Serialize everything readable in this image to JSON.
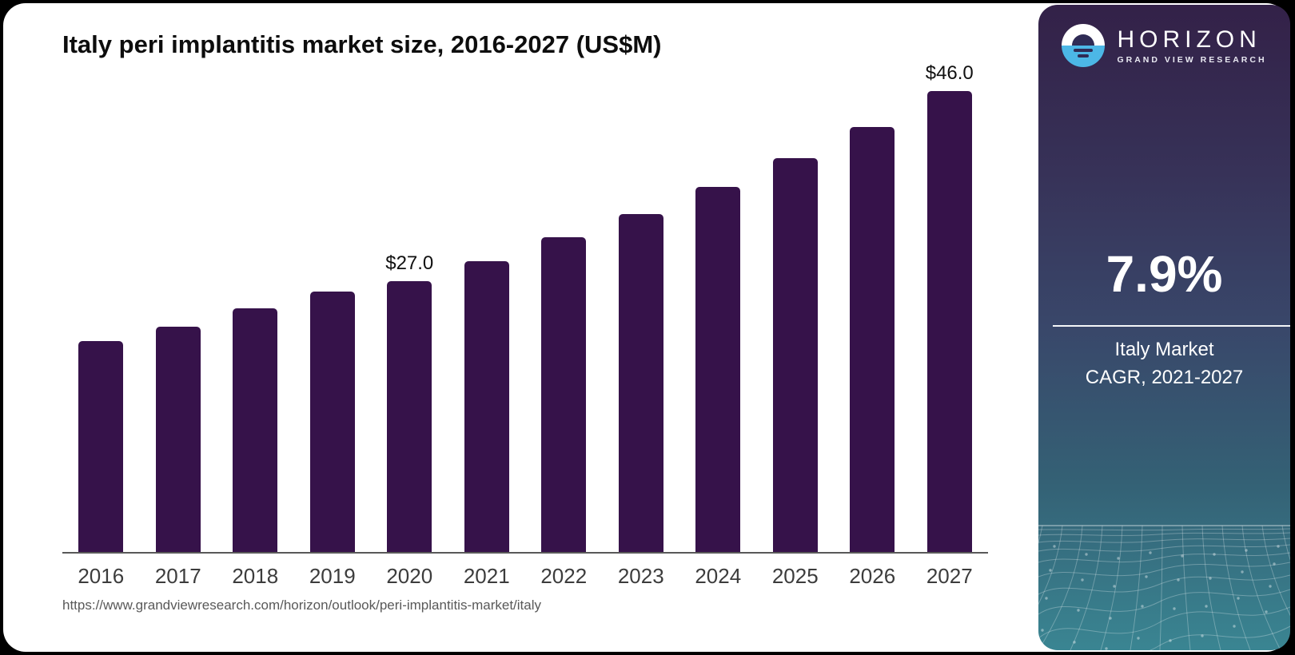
{
  "page": {
    "title": "Italy peri implantitis market size, 2016-2027 (US$M)",
    "source_url": "https://www.grandviewresearch.com/horizon/outlook/peri-implantitis-market/italy"
  },
  "chart_data": {
    "type": "bar",
    "title": "Italy peri implantitis market size, 2016-2027 (US$M)",
    "xlabel": "",
    "ylabel": "",
    "unit": "US$M",
    "ylim": [
      0,
      48
    ],
    "grid": false,
    "bar_color": "#36124a",
    "categories": [
      "2016",
      "2017",
      "2018",
      "2019",
      "2020",
      "2021",
      "2022",
      "2023",
      "2024",
      "2025",
      "2026",
      "2027"
    ],
    "values": [
      21.0,
      22.5,
      24.3,
      26.0,
      27.0,
      29.0,
      31.4,
      33.7,
      36.4,
      39.3,
      42.4,
      46.0
    ],
    "data_labels": [
      {
        "index": 4,
        "text": "$27.0"
      },
      {
        "index": 11,
        "text": "$46.0"
      }
    ]
  },
  "sidebar": {
    "brand": {
      "name": "HORIZON",
      "tagline": "GRAND VIEW RESEARCH",
      "icon": "horizon-sun-logo",
      "icon_blue": "#4cb7e6",
      "icon_navy": "#2f2b55"
    },
    "stat": {
      "value": "7.9%",
      "label_line1": "Italy Market",
      "label_line2": "CAGR, 2021-2027"
    },
    "gradient_top": "#332148",
    "gradient_bottom": "#3a8592"
  }
}
